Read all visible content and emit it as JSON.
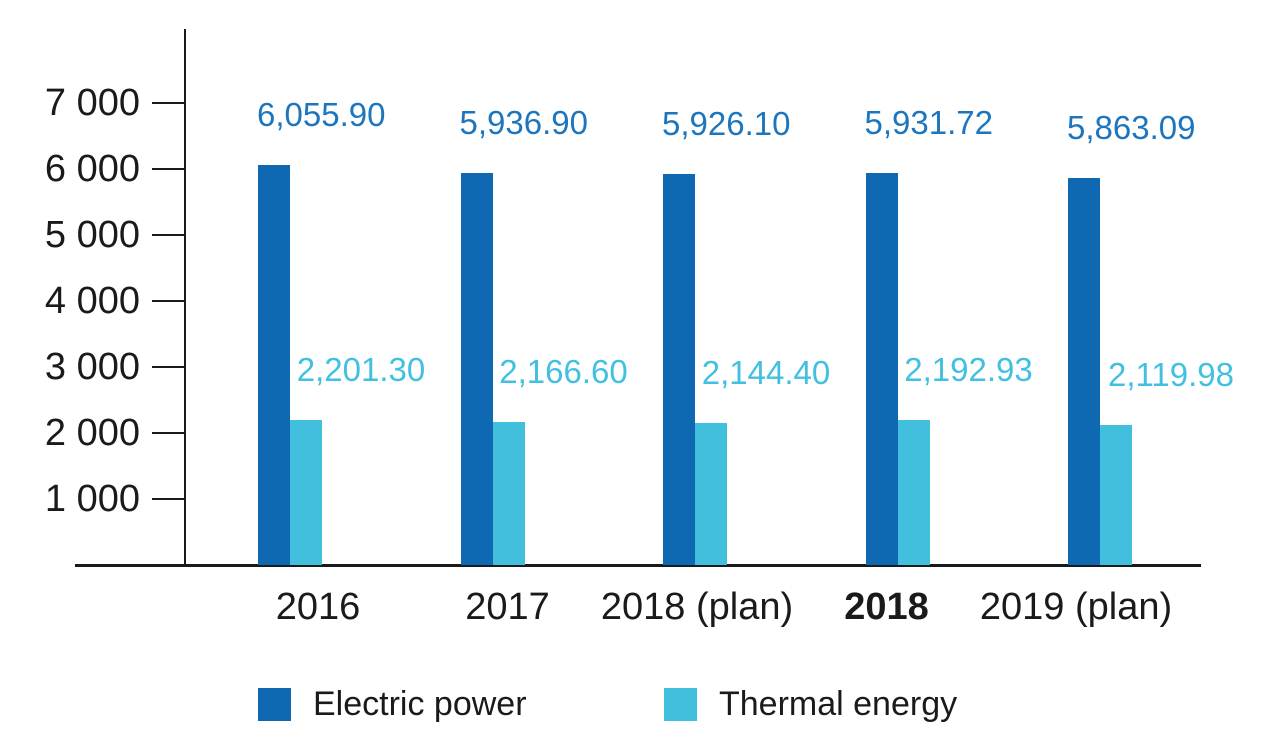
{
  "chart_data": {
    "type": "bar",
    "categories": [
      "2016",
      "2017",
      "2018 (plan)",
      "2018",
      "2019 (plan)"
    ],
    "emphasized_category_index": 3,
    "series": [
      {
        "name": "Electric power",
        "color": "#0e69b2",
        "label_color": "#1d76bd",
        "values": [
          6055.9,
          5936.9,
          5926.1,
          5931.72,
          5863.09
        ],
        "value_labels": [
          "6,055.90",
          "5,936.90",
          "5,926.10",
          "5,931.72",
          "5,863.09"
        ]
      },
      {
        "name": "Thermal energy",
        "color": "#41bfdd",
        "label_color": "#41c0e0",
        "values": [
          2201.3,
          2166.6,
          2144.4,
          2192.93,
          2119.98
        ],
        "value_labels": [
          "2,201.30",
          "2,166.60",
          "2,144.40",
          "2,192.93",
          "2,119.98"
        ]
      }
    ],
    "y_axis": {
      "min": 0,
      "max": 8100,
      "ticks": [
        7000,
        6000,
        5000,
        4000,
        3000,
        2000,
        1000
      ],
      "tick_labels": [
        "7 000",
        "6 000",
        "5 000",
        "4 000",
        "3 000",
        "2 000",
        "1 000"
      ]
    },
    "grid": false,
    "legend_position": "bottom",
    "axis_color": "#1a1a1a"
  }
}
